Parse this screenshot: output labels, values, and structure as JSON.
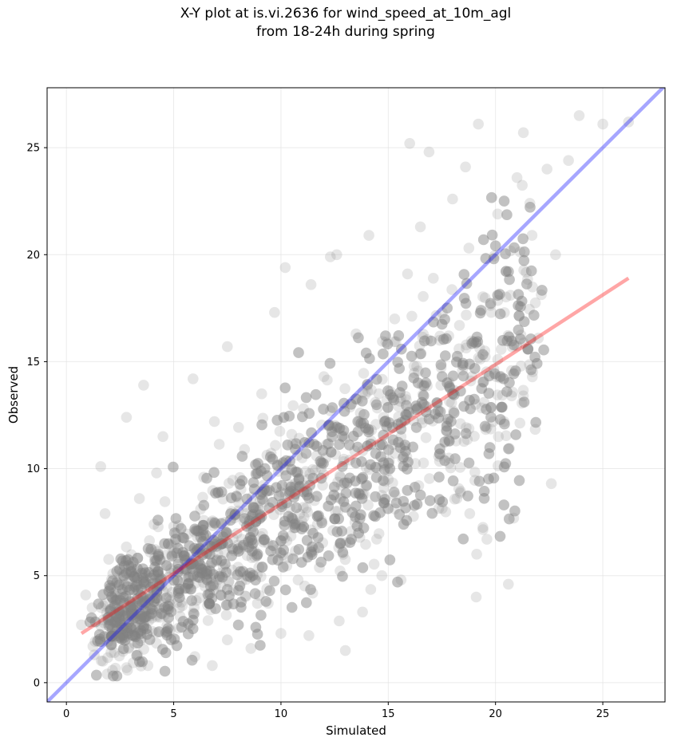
{
  "title_line1": "X-Y plot at is.vi.2636 for wind_speed_at_10m_agl",
  "title_line2": "from 18-24h during spring",
  "chart_data": {
    "type": "scatter",
    "title": "X-Y plot at is.vi.2636 for wind_speed_at_10m_agl\nfrom 18-24h during spring",
    "xlabel": "Simulated",
    "ylabel": "Observed",
    "xlim": [
      -0.9,
      27.9
    ],
    "ylim": [
      -0.9,
      27.8
    ],
    "xticks": [
      0,
      5,
      10,
      15,
      20,
      25
    ],
    "yticks": [
      0,
      5,
      10,
      15,
      20,
      25
    ],
    "grid": true,
    "point_color": "#808080",
    "point_opacity": 0.2,
    "points_note": "approximately 3000 points, densest around (4-10, 2-9)",
    "lines": [
      {
        "name": "1:1 line",
        "color": "#0000ff",
        "opacity": 0.35,
        "x": [
          -0.9,
          27.9
        ],
        "y": [
          -0.9,
          27.9
        ]
      },
      {
        "name": "regression fit",
        "color": "#ff0000",
        "opacity": 0.35,
        "x": [
          0.7,
          26.2
        ],
        "y": [
          2.3,
          18.9
        ]
      }
    ],
    "series": [
      {
        "x": [
          0.7,
          0.9,
          1.2,
          1.3,
          1.6,
          1.8,
          1.9,
          2.1,
          2.2,
          2.5,
          2.8,
          3.0,
          3.1,
          3.4,
          3.6,
          3.9,
          4.0,
          4.2,
          4.5,
          4.8,
          5.0,
          5.3,
          5.6,
          5.9,
          6.1,
          6.4,
          6.6,
          6.9,
          7.2,
          7.5,
          7.7,
          8.0,
          8.3,
          8.6,
          8.9,
          9.1,
          9.4,
          9.7,
          10.0,
          10.2,
          10.5,
          10.8,
          11.1,
          11.4,
          11.7,
          12.0,
          12.3,
          12.6,
          12.9,
          13.2,
          13.5,
          13.8,
          14.1,
          14.4,
          14.7,
          15.0,
          15.3,
          15.6,
          15.9,
          16.2,
          16.5,
          16.8,
          17.1,
          17.4,
          17.7,
          18.0,
          18.3,
          18.6,
          18.9,
          19.2,
          19.5,
          19.8,
          20.1,
          20.4,
          20.7,
          21.0,
          21.3,
          21.6,
          22.0,
          22.4,
          22.8,
          23.4,
          23.9,
          25.0,
          26.2,
          19.1,
          16.0,
          16.9,
          15.6,
          13.0,
          10.0,
          11.3,
          8.6,
          7.5,
          6.8,
          3.8,
          2.8,
          1.7,
          2.9,
          12.3,
          13.8,
          21.3,
          21.7,
          22.6,
          18.8,
          19.6,
          20.6,
          18.2,
          14.8,
          17.4
        ],
        "y": [
          2.7,
          4.1,
          3.5,
          1.3,
          10.1,
          7.9,
          0.4,
          1.8,
          4.2,
          2.3,
          12.4,
          5.2,
          3.0,
          8.6,
          13.9,
          6.1,
          2.4,
          9.8,
          11.5,
          4.0,
          7.3,
          3.1,
          5.8,
          14.2,
          6.8,
          9.6,
          2.9,
          12.2,
          4.5,
          15.7,
          8.0,
          5.4,
          10.9,
          7.1,
          3.7,
          13.5,
          6.5,
          17.3,
          8.9,
          19.4,
          11.6,
          4.8,
          9.2,
          18.6,
          7.4,
          14.3,
          12.7,
          20.0,
          6.0,
          10.4,
          16.3,
          8.8,
          20.9,
          13.1,
          5.0,
          9.9,
          17.0,
          11.5,
          19.1,
          14.8,
          21.3,
          12.9,
          18.9,
          16.0,
          11.8,
          22.6,
          15.6,
          24.1,
          14.3,
          26.1,
          15.5,
          17.3,
          21.9,
          12.2,
          18.1,
          23.6,
          13.4,
          22.4,
          16.1,
          24.0,
          20.0,
          24.4,
          26.5,
          26.1,
          26.2,
          4.0,
          25.2,
          24.8,
          4.8,
          1.5,
          2.3,
          2.2,
          1.6,
          2.0,
          0.8,
          0.8,
          0.7,
          1.0,
          1.6,
          19.9,
          3.3,
          25.7,
          20.9,
          9.3,
          7.9,
          6.7,
          4.6,
          8.6,
          9.1,
          10.7
        ]
      }
    ]
  }
}
